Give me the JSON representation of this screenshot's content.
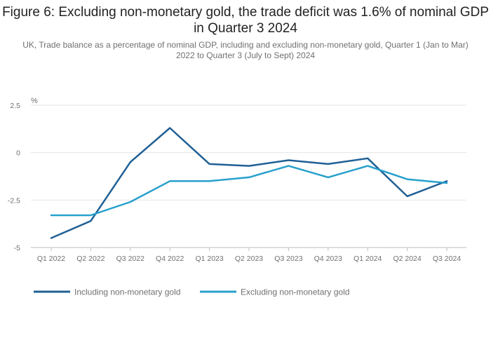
{
  "title": "Figure 6: Excluding non-monetary gold, the trade deficit was 1.6% of nominal GDP in Quarter 3 2024",
  "subtitle": "UK, Trade balance as a percentage of nominal GDP, including and excluding non-monetary gold, Quarter 1 (Jan to Mar) 2022 to Quarter 3 (July to Sept) 2024",
  "chart_data": {
    "type": "line",
    "title": "Figure 6: Excluding non-monetary gold, the trade deficit was 1.6% of nominal GDP in Quarter 3 2024",
    "subtitle": "UK, Trade balance as a percentage of nominal GDP, including and excluding non-monetary gold, Quarter 1 (Jan to Mar) 2022 to Quarter 3 (July to Sept) 2024",
    "ylabel": "%",
    "xlabel": "",
    "categories": [
      "Q1 2022",
      "Q2 2022",
      "Q3 2022",
      "Q4 2022",
      "Q1 2023",
      "Q2 2023",
      "Q3 2023",
      "Q4 2023",
      "Q1 2024",
      "Q2 2024",
      "Q3 2024"
    ],
    "y_ticks": [
      2.5,
      0,
      -2.5,
      -5
    ],
    "y_tick_labels": [
      "2.5",
      "0",
      "-2.5",
      "-5"
    ],
    "ylim": [
      -5,
      2.5
    ],
    "grid": true,
    "legend_position": "bottom-left",
    "series": [
      {
        "name": "Including non-monetary gold",
        "color": "#206095",
        "values": [
          -4.5,
          -3.6,
          -0.5,
          1.3,
          -0.6,
          -0.7,
          -0.4,
          -0.6,
          -0.3,
          -2.3,
          -1.5
        ]
      },
      {
        "name": "Excluding non-monetary gold",
        "color": "#27a0cc",
        "values": [
          -3.3,
          -3.3,
          -2.6,
          -1.5,
          -1.5,
          -1.3,
          -0.7,
          -1.3,
          -0.7,
          -1.4,
          -1.6
        ]
      }
    ]
  }
}
